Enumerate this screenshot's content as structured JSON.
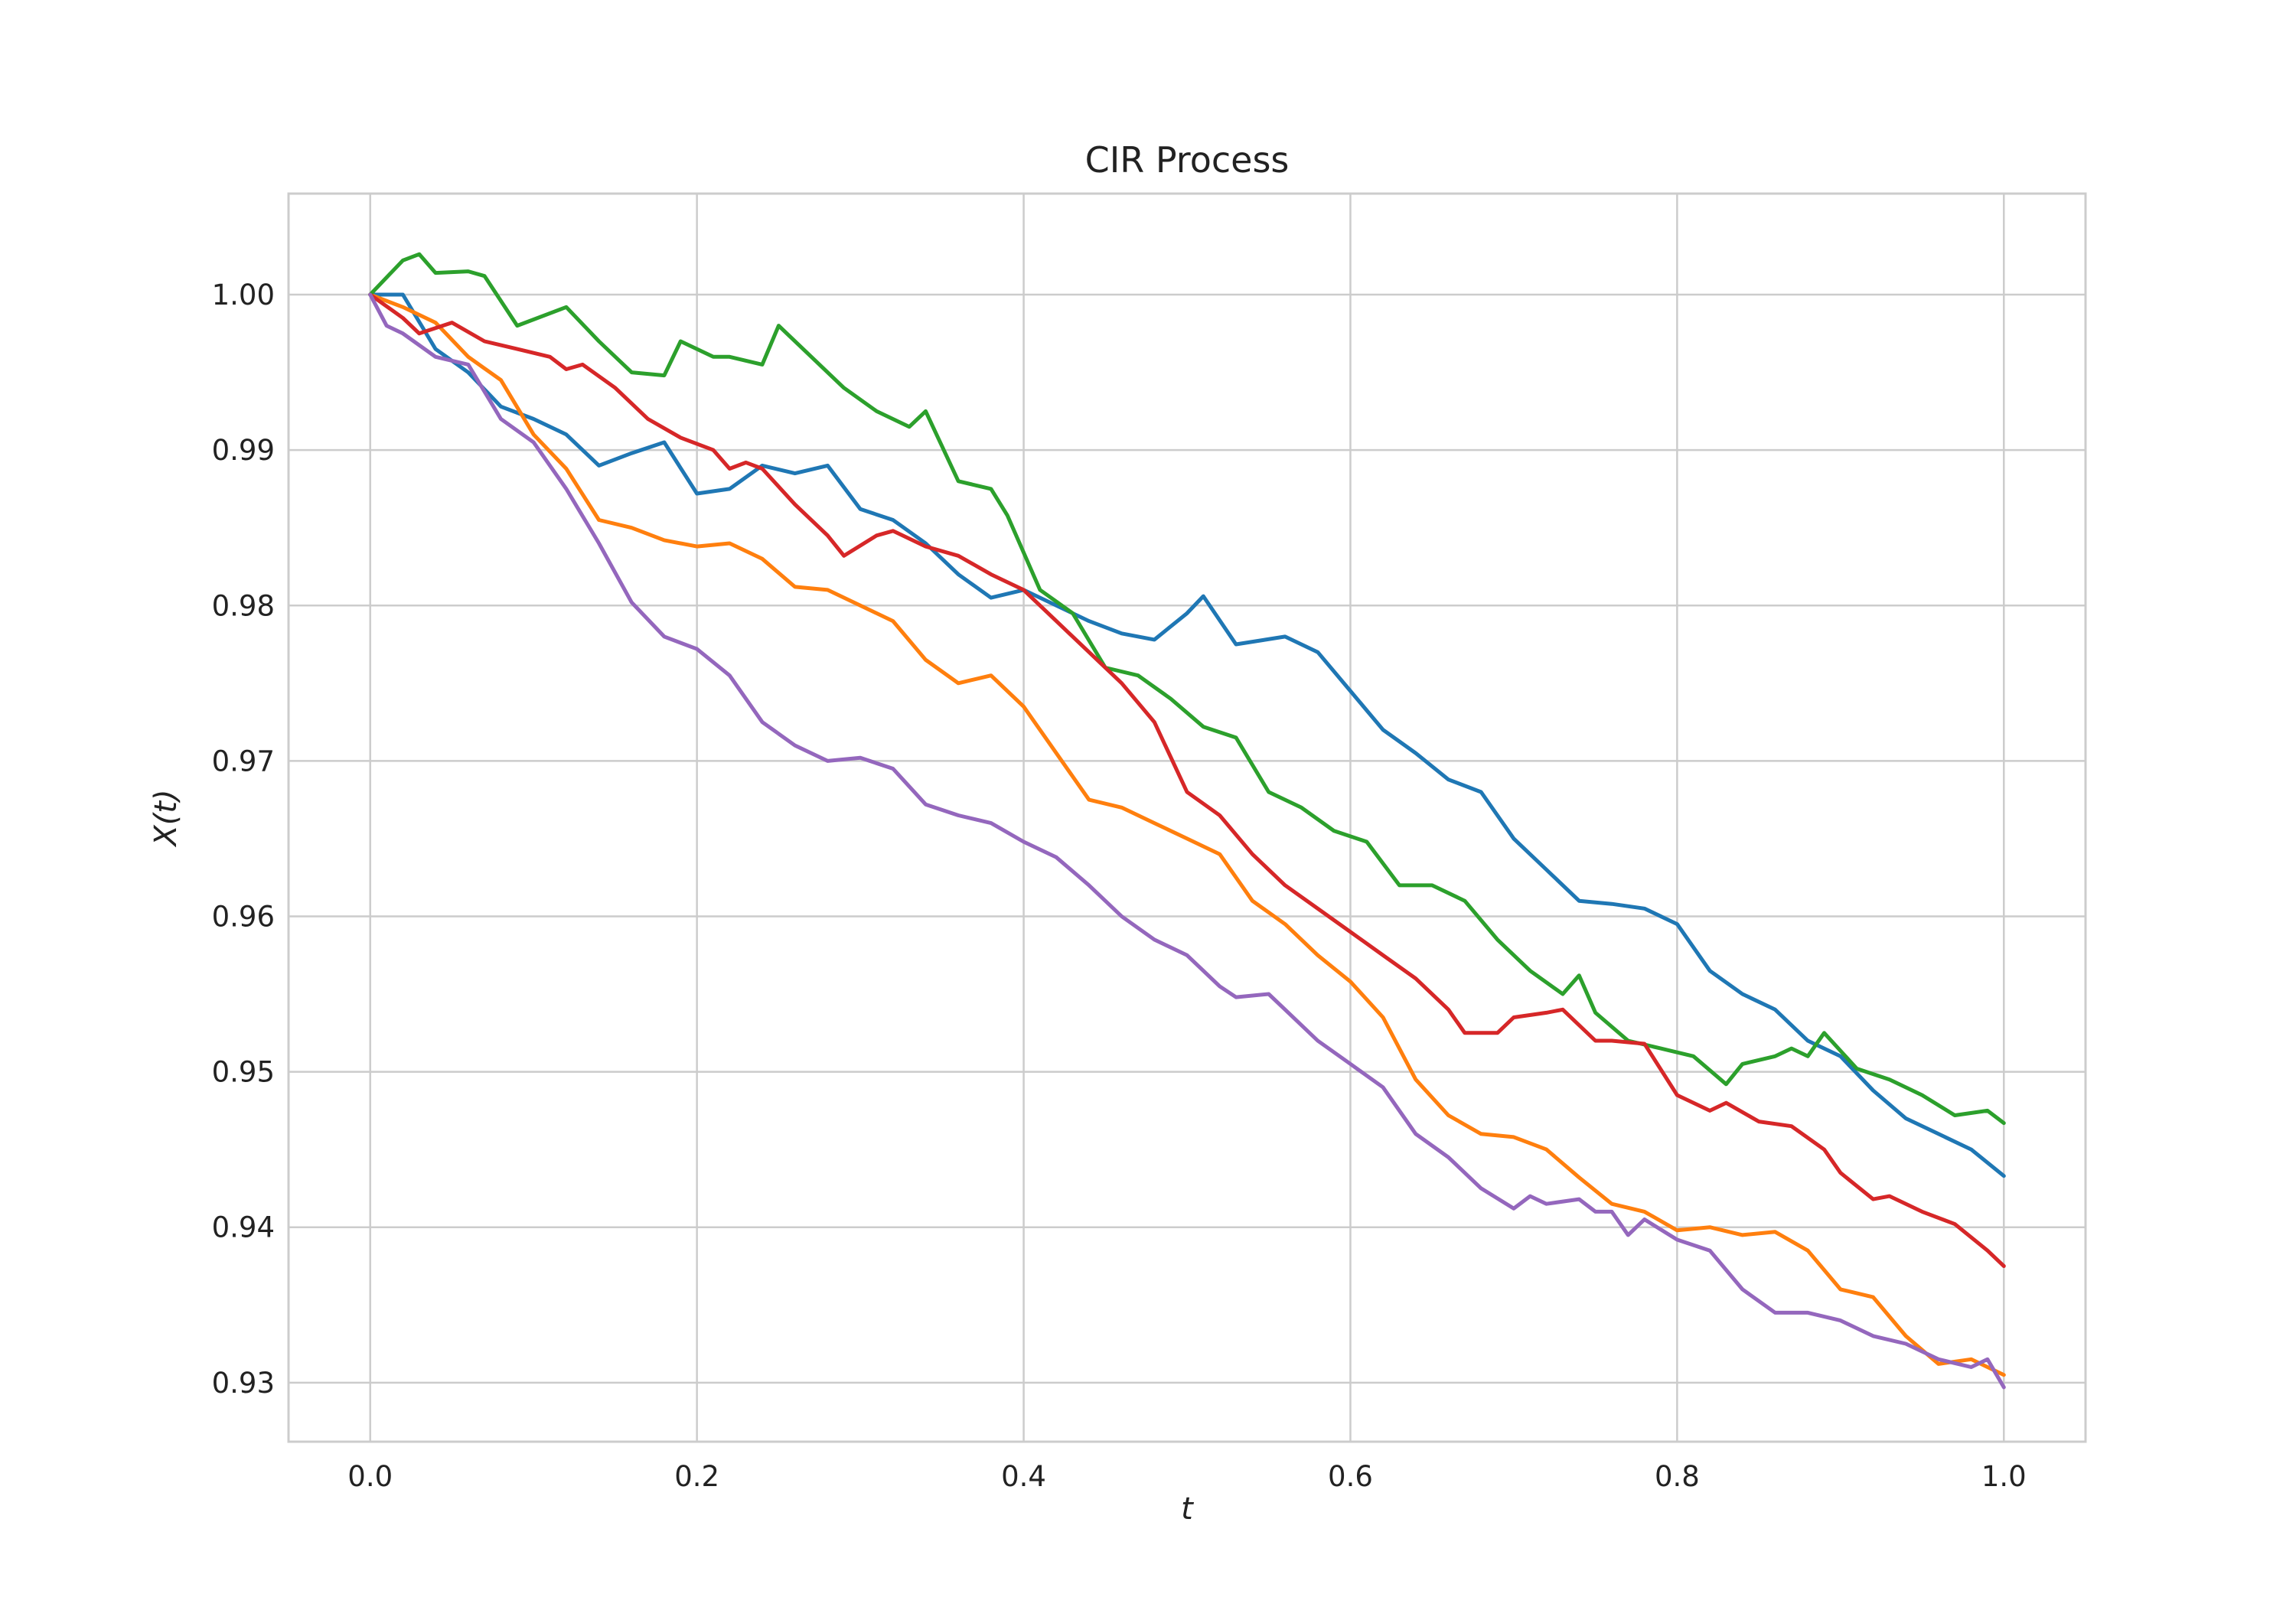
{
  "chart_data": {
    "type": "line",
    "title": "CIR Process",
    "xlabel": "t",
    "ylabel": "X(t)",
    "xlim": [
      -0.05,
      1.05
    ],
    "ylim": [
      0.9262,
      1.0065
    ],
    "xticks": [
      0.0,
      0.2,
      0.4,
      0.6,
      0.8,
      1.0
    ],
    "xtick_labels": [
      "0.0",
      "0.2",
      "0.4",
      "0.6",
      "0.8",
      "1.0"
    ],
    "yticks": [
      0.93,
      0.94,
      0.95,
      0.96,
      0.97,
      0.98,
      0.99,
      1.0
    ],
    "ytick_labels": [
      "0.93",
      "0.94",
      "0.95",
      "0.96",
      "0.97",
      "0.98",
      "0.99",
      "1.00"
    ],
    "grid": true,
    "legend": "none",
    "series": [
      {
        "color": "#1f77b4",
        "x": [
          0.0,
          0.02,
          0.04,
          0.06,
          0.08,
          0.1,
          0.12,
          0.14,
          0.16,
          0.18,
          0.2,
          0.22,
          0.24,
          0.26,
          0.28,
          0.3,
          0.32,
          0.34,
          0.36,
          0.38,
          0.4,
          0.42,
          0.44,
          0.46,
          0.48,
          0.5,
          0.51,
          0.53,
          0.56,
          0.58,
          0.6,
          0.62,
          0.64,
          0.66,
          0.68,
          0.7,
          0.72,
          0.74,
          0.76,
          0.78,
          0.8,
          0.82,
          0.84,
          0.86,
          0.88,
          0.9,
          0.92,
          0.94,
          0.96,
          0.98,
          1.0
        ],
        "y": [
          1.0,
          1.0,
          0.9965,
          0.995,
          0.9928,
          0.992,
          0.991,
          0.989,
          0.9898,
          0.9905,
          0.9872,
          0.9875,
          0.989,
          0.9885,
          0.989,
          0.9862,
          0.9855,
          0.984,
          0.982,
          0.9805,
          0.981,
          0.98,
          0.979,
          0.9782,
          0.9778,
          0.9795,
          0.9806,
          0.9775,
          0.978,
          0.977,
          0.9745,
          0.972,
          0.9705,
          0.9688,
          0.968,
          0.965,
          0.963,
          0.961,
          0.9608,
          0.9605,
          0.9595,
          0.9565,
          0.955,
          0.954,
          0.952,
          0.951,
          0.9488,
          0.947,
          0.946,
          0.945,
          0.9433
        ]
      },
      {
        "color": "#ff7f0e",
        "x": [
          0.0,
          0.02,
          0.04,
          0.06,
          0.08,
          0.1,
          0.12,
          0.14,
          0.16,
          0.18,
          0.2,
          0.22,
          0.24,
          0.26,
          0.28,
          0.3,
          0.32,
          0.34,
          0.36,
          0.38,
          0.4,
          0.42,
          0.44,
          0.46,
          0.48,
          0.5,
          0.52,
          0.54,
          0.56,
          0.58,
          0.6,
          0.62,
          0.64,
          0.66,
          0.68,
          0.7,
          0.72,
          0.74,
          0.76,
          0.78,
          0.8,
          0.82,
          0.84,
          0.86,
          0.88,
          0.9,
          0.92,
          0.94,
          0.96,
          0.98,
          1.0
        ],
        "y": [
          1.0,
          0.9992,
          0.9982,
          0.996,
          0.9945,
          0.991,
          0.9888,
          0.9855,
          0.985,
          0.9842,
          0.9838,
          0.984,
          0.983,
          0.9812,
          0.981,
          0.98,
          0.979,
          0.9765,
          0.975,
          0.9755,
          0.9735,
          0.9705,
          0.9675,
          0.967,
          0.966,
          0.965,
          0.964,
          0.961,
          0.9595,
          0.9575,
          0.9558,
          0.9535,
          0.9495,
          0.9472,
          0.946,
          0.9458,
          0.945,
          0.9432,
          0.9415,
          0.941,
          0.9398,
          0.94,
          0.9395,
          0.9397,
          0.9385,
          0.936,
          0.9355,
          0.933,
          0.9312,
          0.9315,
          0.9305
        ]
      },
      {
        "color": "#2ca02c",
        "x": [
          0.0,
          0.02,
          0.03,
          0.04,
          0.06,
          0.07,
          0.09,
          0.12,
          0.14,
          0.16,
          0.18,
          0.19,
          0.21,
          0.22,
          0.24,
          0.25,
          0.27,
          0.29,
          0.31,
          0.33,
          0.34,
          0.36,
          0.38,
          0.39,
          0.41,
          0.43,
          0.45,
          0.47,
          0.49,
          0.51,
          0.53,
          0.55,
          0.57,
          0.59,
          0.61,
          0.63,
          0.65,
          0.67,
          0.69,
          0.71,
          0.73,
          0.74,
          0.75,
          0.77,
          0.79,
          0.81,
          0.83,
          0.84,
          0.86,
          0.87,
          0.88,
          0.89,
          0.91,
          0.93,
          0.95,
          0.97,
          0.99,
          1.0
        ],
        "y": [
          1.0,
          1.0022,
          1.0026,
          1.0014,
          1.0015,
          1.0012,
          0.998,
          0.9992,
          0.997,
          0.995,
          0.9948,
          0.997,
          0.996,
          0.996,
          0.9955,
          0.998,
          0.996,
          0.994,
          0.9925,
          0.9915,
          0.9925,
          0.988,
          0.9875,
          0.9858,
          0.981,
          0.9795,
          0.976,
          0.9755,
          0.974,
          0.9722,
          0.9715,
          0.968,
          0.967,
          0.9655,
          0.9648,
          0.962,
          0.962,
          0.961,
          0.9585,
          0.9565,
          0.955,
          0.9562,
          0.9538,
          0.952,
          0.9515,
          0.951,
          0.9492,
          0.9505,
          0.951,
          0.9515,
          0.951,
          0.9525,
          0.9502,
          0.9495,
          0.9485,
          0.9472,
          0.9475,
          0.9467
        ]
      },
      {
        "color": "#d62728",
        "x": [
          0.0,
          0.02,
          0.03,
          0.05,
          0.07,
          0.09,
          0.11,
          0.12,
          0.13,
          0.15,
          0.17,
          0.19,
          0.21,
          0.22,
          0.23,
          0.24,
          0.26,
          0.28,
          0.29,
          0.31,
          0.32,
          0.34,
          0.36,
          0.38,
          0.4,
          0.42,
          0.44,
          0.46,
          0.48,
          0.5,
          0.52,
          0.54,
          0.56,
          0.58,
          0.6,
          0.62,
          0.64,
          0.66,
          0.67,
          0.69,
          0.7,
          0.72,
          0.73,
          0.75,
          0.76,
          0.78,
          0.8,
          0.82,
          0.83,
          0.85,
          0.87,
          0.89,
          0.9,
          0.92,
          0.93,
          0.95,
          0.97,
          0.99,
          1.0
        ],
        "y": [
          1.0,
          0.9985,
          0.9975,
          0.9982,
          0.997,
          0.9965,
          0.996,
          0.9952,
          0.9955,
          0.994,
          0.992,
          0.9908,
          0.99,
          0.9888,
          0.9892,
          0.9888,
          0.9865,
          0.9845,
          0.9832,
          0.9845,
          0.9848,
          0.9838,
          0.9832,
          0.982,
          0.981,
          0.979,
          0.977,
          0.975,
          0.9725,
          0.968,
          0.9665,
          0.964,
          0.962,
          0.9605,
          0.959,
          0.9575,
          0.956,
          0.954,
          0.9525,
          0.9525,
          0.9535,
          0.9538,
          0.954,
          0.952,
          0.952,
          0.9518,
          0.9485,
          0.9475,
          0.948,
          0.9468,
          0.9465,
          0.945,
          0.9435,
          0.9418,
          0.942,
          0.941,
          0.9402,
          0.9385,
          0.9375
        ]
      },
      {
        "color": "#9467bd",
        "x": [
          0.0,
          0.01,
          0.02,
          0.04,
          0.06,
          0.08,
          0.1,
          0.12,
          0.14,
          0.16,
          0.18,
          0.2,
          0.22,
          0.24,
          0.26,
          0.28,
          0.3,
          0.32,
          0.34,
          0.36,
          0.38,
          0.4,
          0.42,
          0.44,
          0.46,
          0.48,
          0.5,
          0.52,
          0.53,
          0.55,
          0.56,
          0.58,
          0.6,
          0.62,
          0.64,
          0.66,
          0.68,
          0.7,
          0.71,
          0.72,
          0.74,
          0.75,
          0.76,
          0.77,
          0.78,
          0.8,
          0.82,
          0.84,
          0.86,
          0.88,
          0.9,
          0.92,
          0.94,
          0.96,
          0.98,
          0.99,
          1.0
        ],
        "y": [
          1.0,
          0.998,
          0.9975,
          0.996,
          0.9955,
          0.992,
          0.9905,
          0.9875,
          0.984,
          0.9802,
          0.978,
          0.9772,
          0.9755,
          0.9725,
          0.971,
          0.97,
          0.9702,
          0.9695,
          0.9672,
          0.9665,
          0.966,
          0.9648,
          0.9638,
          0.962,
          0.96,
          0.9585,
          0.9575,
          0.9555,
          0.9548,
          0.955,
          0.954,
          0.952,
          0.9505,
          0.949,
          0.946,
          0.9445,
          0.9425,
          0.9412,
          0.942,
          0.9415,
          0.9418,
          0.941,
          0.941,
          0.9395,
          0.9405,
          0.9392,
          0.9385,
          0.936,
          0.9345,
          0.9345,
          0.934,
          0.933,
          0.9325,
          0.9315,
          0.931,
          0.9315,
          0.9297
        ]
      }
    ]
  }
}
